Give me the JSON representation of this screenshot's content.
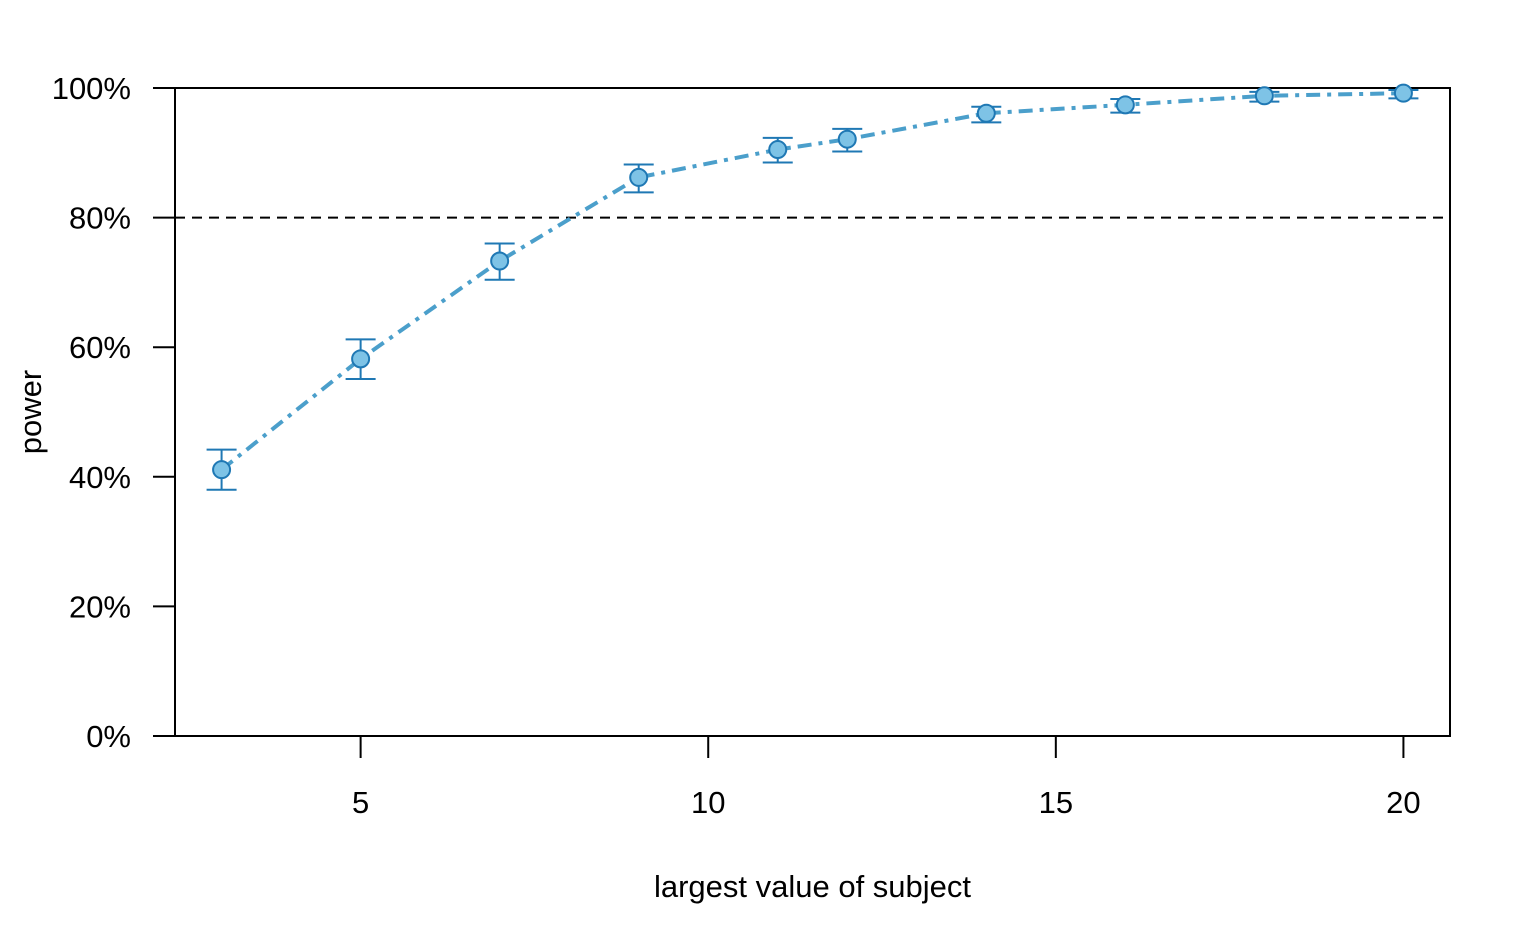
{
  "chart_data": {
    "type": "line",
    "title": "",
    "xlabel": "largest value of subject",
    "ylabel": "power",
    "xlim": [
      2.33,
      20.67
    ],
    "ylim": [
      0,
      100
    ],
    "x_ticks": [
      5,
      10,
      15,
      20
    ],
    "x_tick_labels": [
      "5",
      "10",
      "15",
      "20"
    ],
    "y_ticks": [
      0,
      20,
      40,
      60,
      80,
      100
    ],
    "y_tick_labels": [
      "0%",
      "20%",
      "40%",
      "60%",
      "80%",
      "100%"
    ],
    "grid": false,
    "reference_line": {
      "y": 80,
      "style": "dashed"
    },
    "series": [
      {
        "color": "#4B9FCB",
        "point_fill": "#7EC3E6",
        "error_bar_color": "#1F78B4",
        "line_style": "dash-dot",
        "points": [
          {
            "x": 3,
            "y": 41.1,
            "lower": 38.0,
            "upper": 44.2
          },
          {
            "x": 5,
            "y": 58.2,
            "lower": 55.1,
            "upper": 61.2
          },
          {
            "x": 7,
            "y": 73.3,
            "lower": 70.4,
            "upper": 76.0
          },
          {
            "x": 9,
            "y": 86.2,
            "lower": 83.9,
            "upper": 88.2
          },
          {
            "x": 11,
            "y": 90.5,
            "lower": 88.5,
            "upper": 92.3
          },
          {
            "x": 12,
            "y": 92.1,
            "lower": 90.2,
            "upper": 93.7
          },
          {
            "x": 14,
            "y": 96.1,
            "lower": 94.7,
            "upper": 97.1
          },
          {
            "x": 16,
            "y": 97.4,
            "lower": 96.2,
            "upper": 98.3
          },
          {
            "x": 18,
            "y": 98.8,
            "lower": 97.9,
            "upper": 99.4
          },
          {
            "x": 20,
            "y": 99.2,
            "lower": 98.4,
            "upper": 99.7
          }
        ]
      }
    ]
  }
}
